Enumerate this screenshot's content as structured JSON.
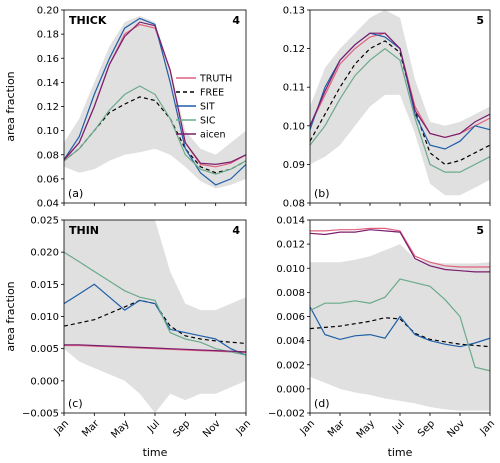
{
  "chart_data": [
    {
      "type": "line",
      "label": "THICK",
      "category": "4",
      "letter": "(a)",
      "ylabel": "area fraction",
      "ylim": [
        0.04,
        0.2
      ],
      "yticks": [
        "0.04",
        "0.06",
        "0.08",
        "0.10",
        "0.12",
        "0.14",
        "0.16",
        "0.18",
        "0.20"
      ],
      "x": [
        0,
        1,
        2,
        3,
        4,
        5,
        6,
        7,
        8,
        9,
        10,
        11,
        12
      ],
      "band": {
        "upper": [
          0.09,
          0.11,
          0.14,
          0.17,
          0.19,
          0.195,
          0.19,
          0.15,
          0.1,
          0.085,
          0.08,
          0.09,
          0.1
        ],
        "lower": [
          0.07,
          0.065,
          0.068,
          0.075,
          0.08,
          0.082,
          0.085,
          0.08,
          0.07,
          0.058,
          0.052,
          0.055,
          0.06
        ]
      },
      "series": [
        {
          "name": "TRUTH",
          "color": "#e0607e",
          "dash": "",
          "values": [
            0.075,
            0.09,
            0.12,
            0.155,
            0.18,
            0.188,
            0.185,
            0.15,
            0.09,
            0.072,
            0.07,
            0.073,
            0.08
          ]
        },
        {
          "name": "FREE",
          "color": "#000000",
          "dash": "4,3",
          "values": [
            0.075,
            0.085,
            0.1,
            0.115,
            0.122,
            0.128,
            0.125,
            0.11,
            0.085,
            0.07,
            0.065,
            0.068,
            0.075
          ]
        },
        {
          "name": "SIT",
          "color": "#1f5fa8",
          "dash": "",
          "values": [
            0.076,
            0.095,
            0.13,
            0.16,
            0.185,
            0.193,
            0.188,
            0.14,
            0.085,
            0.065,
            0.055,
            0.06,
            0.072
          ]
        },
        {
          "name": "SIC",
          "color": "#6aaa8a",
          "dash": "",
          "values": [
            0.075,
            0.085,
            0.1,
            0.117,
            0.13,
            0.137,
            0.13,
            0.11,
            0.08,
            0.068,
            0.064,
            0.068,
            0.075
          ]
        },
        {
          "name": "aicen",
          "color": "#7a1e6e",
          "dash": "",
          "values": [
            0.076,
            0.09,
            0.12,
            0.155,
            0.178,
            0.19,
            0.187,
            0.15,
            0.09,
            0.073,
            0.072,
            0.074,
            0.08
          ]
        }
      ],
      "legend": [
        "TRUTH",
        "FREE",
        "SIT",
        "SIC",
        "aicen"
      ]
    },
    {
      "type": "line",
      "label": "",
      "category": "5",
      "letter": "(b)",
      "ylim": [
        0.08,
        0.13
      ],
      "yticks": [
        "0.08",
        "0.09",
        "0.10",
        "0.11",
        "0.12",
        "0.13"
      ],
      "x": [
        0,
        1,
        2,
        3,
        4,
        5,
        6,
        7,
        8,
        9,
        10,
        11,
        12
      ],
      "band": {
        "upper": [
          0.105,
          0.115,
          0.12,
          0.124,
          0.128,
          0.13,
          0.128,
          0.112,
          0.101,
          0.1,
          0.101,
          0.103,
          0.105
        ],
        "lower": [
          0.09,
          0.092,
          0.095,
          0.1,
          0.105,
          0.108,
          0.108,
          0.098,
          0.085,
          0.082,
          0.082,
          0.084,
          0.086
        ]
      },
      "series": [
        {
          "name": "TRUTH",
          "color": "#e0607e",
          "dash": "",
          "values": [
            0.1,
            0.108,
            0.116,
            0.12,
            0.123,
            0.124,
            0.12,
            0.105,
            0.098,
            0.097,
            0.098,
            0.1,
            0.102
          ]
        },
        {
          "name": "FREE",
          "color": "#000000",
          "dash": "4,3",
          "values": [
            0.096,
            0.103,
            0.11,
            0.116,
            0.12,
            0.122,
            0.119,
            0.104,
            0.093,
            0.09,
            0.091,
            0.093,
            0.095
          ]
        },
        {
          "name": "SIT",
          "color": "#1f5fa8",
          "dash": "",
          "values": [
            0.099,
            0.11,
            0.117,
            0.121,
            0.124,
            0.123,
            0.12,
            0.103,
            0.095,
            0.094,
            0.096,
            0.1,
            0.099
          ]
        },
        {
          "name": "SIC",
          "color": "#6aaa8a",
          "dash": "",
          "values": [
            0.095,
            0.1,
            0.107,
            0.113,
            0.117,
            0.12,
            0.117,
            0.102,
            0.09,
            0.088,
            0.088,
            0.09,
            0.092
          ]
        },
        {
          "name": "aicen",
          "color": "#7a1e6e",
          "dash": "",
          "values": [
            0.1,
            0.109,
            0.117,
            0.121,
            0.124,
            0.124,
            0.12,
            0.104,
            0.098,
            0.097,
            0.098,
            0.101,
            0.103
          ]
        }
      ]
    },
    {
      "type": "line",
      "label": "THIN",
      "category": "4",
      "letter": "(c)",
      "ylabel": "area fraction",
      "ylim": [
        -0.005,
        0.025
      ],
      "yticks": [
        "−0.005",
        "0.000",
        "0.005",
        "0.010",
        "0.015",
        "0.020",
        "0.025"
      ],
      "x": [
        0,
        1,
        2,
        3,
        4,
        5,
        6,
        7,
        8,
        9,
        10,
        11,
        12
      ],
      "band": {
        "upper": [
          0.025,
          0.025,
          0.025,
          0.025,
          0.025,
          0.025,
          0.025,
          0.017,
          0.012,
          0.011,
          0.011,
          0.012,
          0.013
        ],
        "lower": [
          0.005,
          0.003,
          0.002,
          0.001,
          0.0,
          -0.002,
          -0.005,
          -0.002,
          -0.003,
          -0.002,
          -0.002,
          -0.001,
          0.0
        ]
      },
      "series": [
        {
          "name": "TRUTH",
          "color": "#e0607e",
          "dash": "",
          "values": [
            0.0055,
            0.0055,
            0.0054,
            0.0053,
            0.0052,
            0.0051,
            0.005,
            0.0049,
            0.0048,
            0.0047,
            0.0046,
            0.0045,
            0.0044
          ]
        },
        {
          "name": "FREE",
          "color": "#000000",
          "dash": "4,3",
          "values": [
            0.0085,
            0.009,
            0.0095,
            0.0105,
            0.0115,
            0.0125,
            0.012,
            0.0085,
            0.007,
            0.0065,
            0.0062,
            0.006,
            0.0058
          ]
        },
        {
          "name": "SIT",
          "color": "#1f5fa8",
          "dash": "",
          "values": [
            0.012,
            0.0135,
            0.015,
            0.013,
            0.011,
            0.0125,
            0.012,
            0.008,
            0.0075,
            0.007,
            0.0065,
            0.005,
            0.004
          ]
        },
        {
          "name": "SIC",
          "color": "#6aaa8a",
          "dash": "",
          "values": [
            0.02,
            0.0185,
            0.017,
            0.0155,
            0.014,
            0.013,
            0.0125,
            0.0075,
            0.0065,
            0.006,
            0.005,
            0.0045,
            0.004
          ]
        },
        {
          "name": "aicen",
          "color": "#7a1e6e",
          "dash": "",
          "values": [
            0.0056,
            0.0056,
            0.0055,
            0.0054,
            0.0053,
            0.0052,
            0.0051,
            0.005,
            0.0049,
            0.0048,
            0.0047,
            0.0046,
            0.0045
          ]
        }
      ]
    },
    {
      "type": "line",
      "label": "",
      "category": "5",
      "letter": "(d)",
      "ylim": [
        -0.002,
        0.014
      ],
      "yticks": [
        "−0.002",
        "0.000",
        "0.002",
        "0.004",
        "0.006",
        "0.008",
        "0.010",
        "0.012",
        "0.014"
      ],
      "x": [
        0,
        1,
        2,
        3,
        4,
        5,
        6,
        7,
        8,
        9,
        10,
        11,
        12
      ],
      "band": {
        "upper": [
          0.0105,
          0.0105,
          0.0105,
          0.0107,
          0.011,
          0.0115,
          0.012,
          0.0108,
          0.0105,
          0.0104,
          0.0104,
          0.0104,
          0.0105
        ],
        "lower": [
          0.001,
          0.0005,
          0.0,
          -0.0003,
          -0.0005,
          -0.0008,
          -0.001,
          -0.0012,
          -0.0015,
          -0.0017,
          -0.0018,
          -0.0018,
          -0.0018
        ]
      },
      "series": [
        {
          "name": "TRUTH",
          "color": "#e0607e",
          "dash": "",
          "values": [
            0.0131,
            0.0131,
            0.0132,
            0.0132,
            0.0133,
            0.0133,
            0.0131,
            0.011,
            0.0105,
            0.0102,
            0.0101,
            0.0101,
            0.0101
          ]
        },
        {
          "name": "FREE",
          "color": "#000000",
          "dash": "4,3",
          "values": [
            0.005,
            0.0051,
            0.0052,
            0.0054,
            0.0056,
            0.0059,
            0.0058,
            0.0046,
            0.0041,
            0.0039,
            0.0037,
            0.0036,
            0.0035
          ]
        },
        {
          "name": "SIT",
          "color": "#1f5fa8",
          "dash": "",
          "values": [
            0.0068,
            0.0045,
            0.0041,
            0.0044,
            0.0045,
            0.0042,
            0.006,
            0.0045,
            0.004,
            0.0037,
            0.0035,
            0.0038,
            0.0042
          ]
        },
        {
          "name": "SIC",
          "color": "#6aaa8a",
          "dash": "",
          "values": [
            0.0065,
            0.0071,
            0.0071,
            0.0073,
            0.0071,
            0.0076,
            0.0091,
            0.0088,
            0.0085,
            0.0074,
            0.006,
            0.0018,
            0.0015
          ]
        },
        {
          "name": "aicen",
          "color": "#7a1e6e",
          "dash": "",
          "values": [
            0.0129,
            0.0128,
            0.013,
            0.013,
            0.0132,
            0.0131,
            0.013,
            0.0108,
            0.0102,
            0.0099,
            0.0098,
            0.0097,
            0.0097
          ]
        }
      ]
    }
  ],
  "xticks": [
    "Jan",
    "Mar",
    "May",
    "Jul",
    "Sep",
    "Nov",
    "Jan"
  ],
  "xtick_positions": [
    0,
    2,
    4,
    6,
    8,
    10,
    12
  ],
  "xlabel": "time"
}
